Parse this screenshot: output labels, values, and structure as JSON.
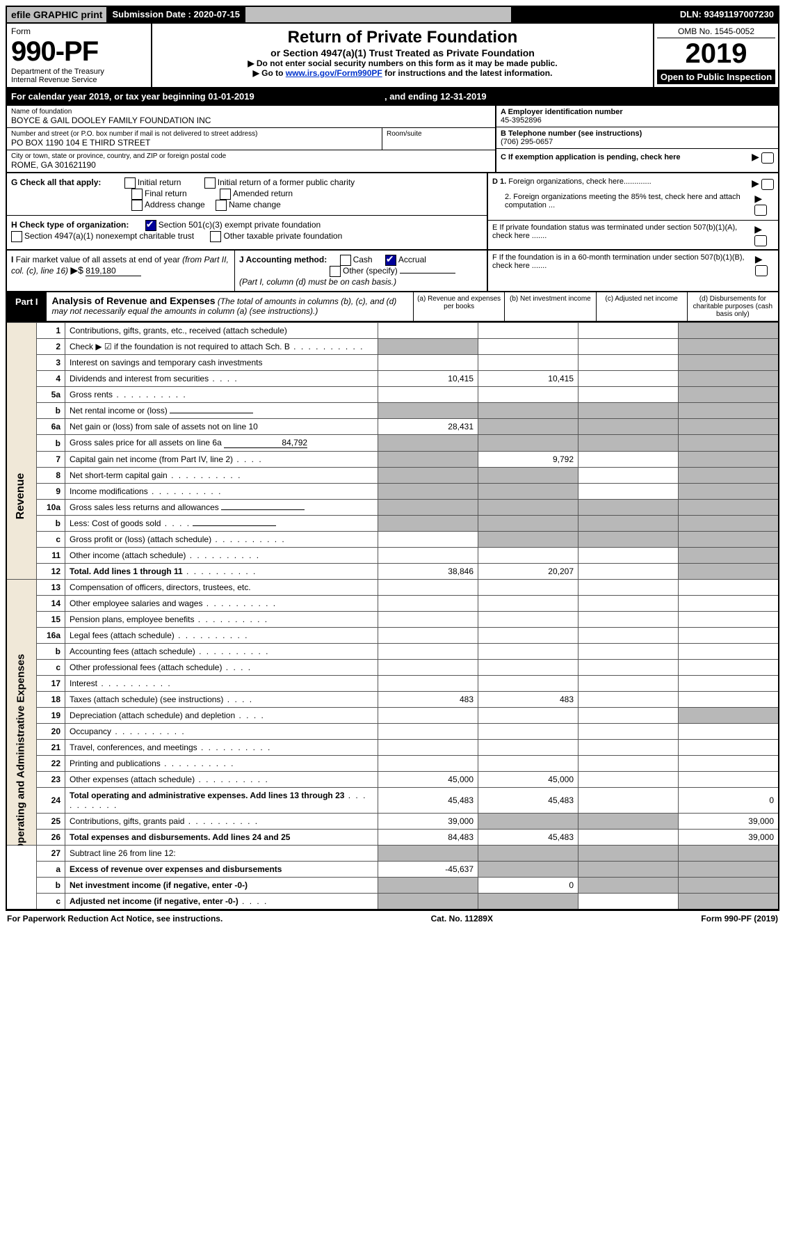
{
  "top": {
    "efile": "efile GRAPHIC print",
    "sub_label": "Submission Date : 2020-07-15",
    "dln": "DLN: 93491197007230"
  },
  "header": {
    "form_label": "Form",
    "form_num": "990-PF",
    "dept": "Department of the Treasury",
    "irs": "Internal Revenue Service",
    "title": "Return of Private Foundation",
    "subtitle": "or Section 4947(a)(1) Trust Treated as Private Foundation",
    "instr1": "▶ Do not enter social security numbers on this form as it may be made public.",
    "instr2_pre": "▶ Go to ",
    "instr2_link": "www.irs.gov/Form990PF",
    "instr2_post": " for instructions and the latest information.",
    "omb": "OMB No. 1545-0052",
    "year": "2019",
    "open": "Open to Public Inspection"
  },
  "cal": {
    "text_pre": "For calendar year 2019, or tax year beginning ",
    "begin": "01-01-2019",
    "mid": " , and ending ",
    "end": "12-31-2019"
  },
  "info": {
    "name_lbl": "Name of foundation",
    "name": "BOYCE & GAIL DOOLEY FAMILY FOUNDATION INC",
    "addr_lbl": "Number and street (or P.O. box number if mail is not delivered to street address)",
    "addr": "PO BOX 1190 104 E THIRD STREET",
    "room_lbl": "Room/suite",
    "city_lbl": "City or town, state or province, country, and ZIP or foreign postal code",
    "city": "ROME, GA  301621190",
    "a_lbl": "A Employer identification number",
    "a_val": "45-3952896",
    "b_lbl": "B Telephone number (see instructions)",
    "b_val": "(706) 295-0657",
    "c_lbl": "C  If exemption application is pending, check here"
  },
  "g": {
    "label": "G Check all that apply:",
    "opts": [
      "Initial return",
      "Initial return of a former public charity",
      "Final return",
      "Amended return",
      "Address change",
      "Name change"
    ]
  },
  "h": {
    "label": "H Check type of organization:",
    "o1": "Section 501(c)(3) exempt private foundation",
    "o2": "Section 4947(a)(1) nonexempt charitable trust",
    "o3": "Other taxable private foundation"
  },
  "d": {
    "d1": "D 1. Foreign organizations, check here.............",
    "d2": "2. Foreign organizations meeting the 85% test, check here and attach computation ...",
    "e": "E  If private foundation status was terminated under section 507(b)(1)(A), check here .......",
    "f": "F  If the foundation is in a 60-month termination under section 507(b)(1)(B), check here ......."
  },
  "i": {
    "label": "I Fair market value of all assets at end of year (from Part II, col. (c), line 16)",
    "arrow": "▶$",
    "val": "819,180"
  },
  "j": {
    "label": "J Accounting method:",
    "cash": "Cash",
    "accrual": "Accrual",
    "other": "Other (specify)",
    "note": "(Part I, column (d) must be on cash basis.)"
  },
  "part1": {
    "label": "Part I",
    "title": "Analysis of Revenue and Expenses",
    "note": " (The total of amounts in columns (b), (c), and (d) may not necessarily equal the amounts in column (a) (see instructions).)",
    "cols": [
      "(a)   Revenue and expenses per books",
      "(b)  Net investment income",
      "(c)  Adjusted net income",
      "(d)  Disbursements for charitable purposes (cash basis only)"
    ]
  },
  "sections": {
    "rev": "Revenue",
    "exp": "Operating and Administrative Expenses"
  },
  "rows": [
    {
      "n": "1",
      "d": "Contributions, gifts, grants, etc., received (attach schedule)",
      "a": "",
      "b": "",
      "shade_bcd": false
    },
    {
      "n": "2",
      "d": "Check ▶ ☑ if the foundation is not required to attach Sch. B",
      "dots": true,
      "shade_a": true
    },
    {
      "n": "3",
      "d": "Interest on savings and temporary cash investments"
    },
    {
      "n": "4",
      "d": "Dividends and interest from securities",
      "dots_s": true,
      "a": "10,415",
      "b": "10,415"
    },
    {
      "n": "5a",
      "d": "Gross rents",
      "dots": true
    },
    {
      "n": "b",
      "d": "Net rental income or (loss)",
      "input": true,
      "shade_all": true
    },
    {
      "n": "6a",
      "d": "Net gain or (loss) from sale of assets not on line 10",
      "a": "28,431",
      "shade_bc": true
    },
    {
      "n": "b",
      "d": "Gross sales price for all assets on line 6a",
      "input": true,
      "input_val": "84,792",
      "shade_all": true
    },
    {
      "n": "7",
      "d": "Capital gain net income (from Part IV, line 2)",
      "dots_s": true,
      "shade_a": true,
      "b": "9,792"
    },
    {
      "n": "8",
      "d": "Net short-term capital gain",
      "dots": true,
      "shade_ab": true
    },
    {
      "n": "9",
      "d": "Income modifications",
      "dots": true,
      "shade_ab": true
    },
    {
      "n": "10a",
      "d": "Gross sales less returns and allowances",
      "input": true,
      "shade_all": true
    },
    {
      "n": "b",
      "d": "Less: Cost of goods sold",
      "dots_s": true,
      "input": true,
      "shade_all": true
    },
    {
      "n": "c",
      "d": "Gross profit or (loss) (attach schedule)",
      "dots": true,
      "shade_bc": true
    },
    {
      "n": "11",
      "d": "Other income (attach schedule)",
      "dots": true
    },
    {
      "n": "12",
      "d": "Total. Add lines 1 through 11",
      "dots": true,
      "bold": true,
      "a": "38,846",
      "b": "20,207"
    }
  ],
  "exp_rows": [
    {
      "n": "13",
      "d": "Compensation of officers, directors, trustees, etc."
    },
    {
      "n": "14",
      "d": "Other employee salaries and wages",
      "dots": true
    },
    {
      "n": "15",
      "d": "Pension plans, employee benefits",
      "dots": true
    },
    {
      "n": "16a",
      "d": "Legal fees (attach schedule)",
      "dots": true
    },
    {
      "n": "b",
      "d": "Accounting fees (attach schedule)",
      "dots": true
    },
    {
      "n": "c",
      "d": "Other professional fees (attach schedule)",
      "dots_s": true
    },
    {
      "n": "17",
      "d": "Interest",
      "dots": true
    },
    {
      "n": "18",
      "d": "Taxes (attach schedule) (see instructions)",
      "dots_s": true,
      "a": "483",
      "b": "483"
    },
    {
      "n": "19",
      "d": "Depreciation (attach schedule) and depletion",
      "dots_s": true,
      "shade_d": true
    },
    {
      "n": "20",
      "d": "Occupancy",
      "dots": true
    },
    {
      "n": "21",
      "d": "Travel, conferences, and meetings",
      "dots": true
    },
    {
      "n": "22",
      "d": "Printing and publications",
      "dots": true
    },
    {
      "n": "23",
      "d": "Other expenses (attach schedule)",
      "dots": true,
      "a": "45,000",
      "b": "45,000"
    },
    {
      "n": "24",
      "d": "Total operating and administrative expenses. Add lines 13 through 23",
      "dots": true,
      "bold": true,
      "a": "45,483",
      "b": "45,483",
      "dv": "0"
    },
    {
      "n": "25",
      "d": "Contributions, gifts, grants paid",
      "dots": true,
      "a": "39,000",
      "shade_bc": true,
      "dv": "39,000"
    },
    {
      "n": "26",
      "d": "Total expenses and disbursements. Add lines 24 and 25",
      "bold": true,
      "a": "84,483",
      "b": "45,483",
      "dv": "39,000"
    }
  ],
  "bottom_rows": [
    {
      "n": "27",
      "d": "Subtract line 26 from line 12:",
      "shade_all": true
    },
    {
      "n": "a",
      "d": "Excess of revenue over expenses and disbursements",
      "bold": true,
      "a": "-45,637",
      "shade_bcd": true
    },
    {
      "n": "b",
      "d": "Net investment income (if negative, enter -0-)",
      "bold": true,
      "shade_a": true,
      "b": "0",
      "shade_cd": true
    },
    {
      "n": "c",
      "d": "Adjusted net income (if negative, enter -0-)",
      "bold": true,
      "dots_s": true,
      "shade_ab": true,
      "shade_d": true
    }
  ],
  "footer": {
    "left": "For Paperwork Reduction Act Notice, see instructions.",
    "mid": "Cat. No. 11289X",
    "right": "Form 990-PF (2019)"
  }
}
